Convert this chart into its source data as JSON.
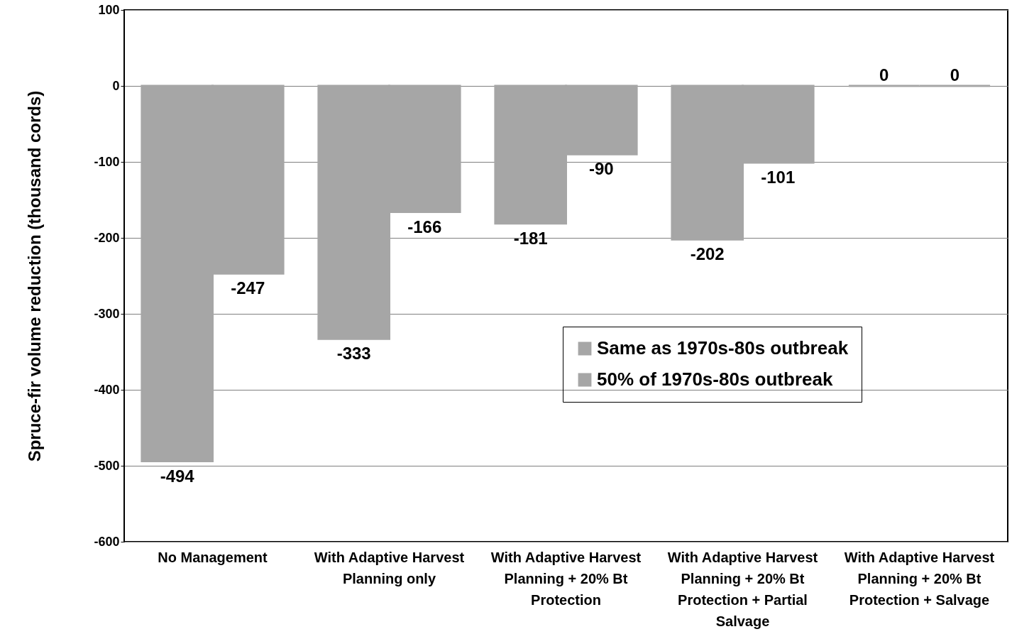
{
  "chart_data": {
    "type": "bar",
    "ylabel": "Spruce-fir volume reduction (thousand cords)",
    "categories": [
      "No Management",
      "With Adaptive Harvest Planning only",
      "With Adaptive Harvest Planning + 20% Bt Protection",
      "With Adaptive Harvest Planning + 20% Bt Protection + Partial Salvage",
      "With Adaptive Harvest Planning + 20% Bt Protection + Salvage"
    ],
    "series": [
      {
        "name": "Same as 1970s-80s outbreak",
        "color": "#a6a6a6",
        "values": [
          -494,
          -333,
          -181,
          -202,
          0
        ]
      },
      {
        "name": "50% of 1970s-80s outbreak",
        "color": "#a6a6a6",
        "values": [
          -247,
          -166,
          -90,
          -101,
          0
        ]
      }
    ],
    "ylim": [
      -600,
      100
    ],
    "yticks": [
      -600,
      -500,
      -400,
      -300,
      -200,
      -100,
      0,
      100
    ],
    "grid": "y",
    "legend": "right",
    "data_labels": true
  }
}
